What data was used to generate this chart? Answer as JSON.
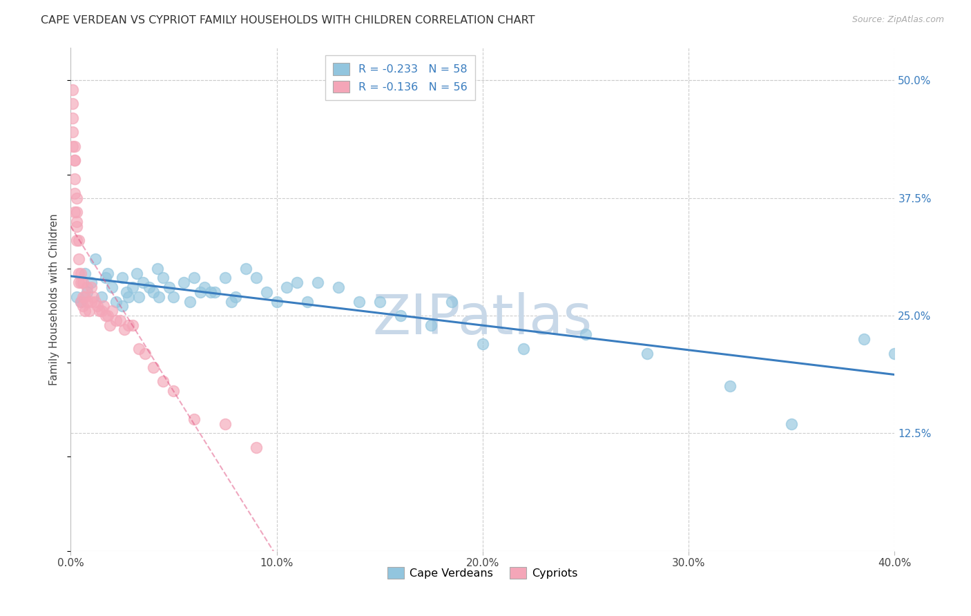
{
  "title": "CAPE VERDEAN VS CYPRIOT FAMILY HOUSEHOLDS WITH CHILDREN CORRELATION CHART",
  "source": "Source: ZipAtlas.com",
  "ylabel": "Family Households with Children",
  "x_tick_labels": [
    "0.0%",
    "10.0%",
    "20.0%",
    "30.0%",
    "40.0%"
  ],
  "x_tick_vals": [
    0.0,
    0.1,
    0.2,
    0.3,
    0.4
  ],
  "y_tick_labels_right": [
    "50.0%",
    "37.5%",
    "25.0%",
    "12.5%"
  ],
  "y_tick_vals": [
    0.5,
    0.375,
    0.25,
    0.125
  ],
  "xlim": [
    0.0,
    0.4
  ],
  "ylim": [
    0.0,
    0.535
  ],
  "legend_blue_label": "R = -0.233   N = 58",
  "legend_pink_label": "R = -0.136   N = 56",
  "blue_color": "#92c5de",
  "pink_color": "#f4a6b8",
  "blue_line_color": "#3a7dbf",
  "pink_line_color": "#e05080",
  "watermark": "ZIPatlas",
  "watermark_color": "#c8d8e8",
  "background_color": "#ffffff",
  "grid_color": "#cccccc",
  "cape_verdean_x": [
    0.003,
    0.005,
    0.007,
    0.008,
    0.01,
    0.012,
    0.015,
    0.017,
    0.018,
    0.02,
    0.022,
    0.025,
    0.025,
    0.027,
    0.028,
    0.03,
    0.032,
    0.033,
    0.035,
    0.038,
    0.04,
    0.042,
    0.043,
    0.045,
    0.048,
    0.05,
    0.055,
    0.058,
    0.06,
    0.063,
    0.065,
    0.068,
    0.07,
    0.075,
    0.078,
    0.08,
    0.085,
    0.09,
    0.095,
    0.1,
    0.105,
    0.11,
    0.115,
    0.12,
    0.13,
    0.14,
    0.15,
    0.16,
    0.175,
    0.185,
    0.2,
    0.22,
    0.25,
    0.28,
    0.32,
    0.35,
    0.385,
    0.4
  ],
  "cape_verdean_y": [
    0.27,
    0.265,
    0.295,
    0.275,
    0.285,
    0.31,
    0.27,
    0.29,
    0.295,
    0.28,
    0.265,
    0.29,
    0.26,
    0.275,
    0.27,
    0.28,
    0.295,
    0.27,
    0.285,
    0.28,
    0.275,
    0.3,
    0.27,
    0.29,
    0.28,
    0.27,
    0.285,
    0.265,
    0.29,
    0.275,
    0.28,
    0.275,
    0.275,
    0.29,
    0.265,
    0.27,
    0.3,
    0.29,
    0.275,
    0.265,
    0.28,
    0.285,
    0.265,
    0.285,
    0.28,
    0.265,
    0.265,
    0.25,
    0.24,
    0.265,
    0.22,
    0.215,
    0.23,
    0.21,
    0.175,
    0.135,
    0.225,
    0.21
  ],
  "cypriot_x": [
    0.001,
    0.001,
    0.001,
    0.001,
    0.001,
    0.002,
    0.002,
    0.002,
    0.002,
    0.002,
    0.002,
    0.003,
    0.003,
    0.003,
    0.003,
    0.003,
    0.004,
    0.004,
    0.004,
    0.004,
    0.005,
    0.005,
    0.005,
    0.006,
    0.006,
    0.006,
    0.007,
    0.007,
    0.008,
    0.008,
    0.009,
    0.01,
    0.01,
    0.011,
    0.012,
    0.013,
    0.014,
    0.015,
    0.016,
    0.017,
    0.018,
    0.019,
    0.02,
    0.022,
    0.024,
    0.026,
    0.028,
    0.03,
    0.033,
    0.036,
    0.04,
    0.045,
    0.05,
    0.06,
    0.075,
    0.09
  ],
  "cypriot_y": [
    0.49,
    0.475,
    0.46,
    0.445,
    0.43,
    0.43,
    0.415,
    0.395,
    0.415,
    0.38,
    0.36,
    0.36,
    0.345,
    0.375,
    0.35,
    0.33,
    0.33,
    0.31,
    0.295,
    0.285,
    0.295,
    0.285,
    0.265,
    0.285,
    0.27,
    0.26,
    0.27,
    0.255,
    0.28,
    0.265,
    0.255,
    0.28,
    0.265,
    0.27,
    0.265,
    0.26,
    0.255,
    0.255,
    0.26,
    0.25,
    0.25,
    0.24,
    0.255,
    0.245,
    0.245,
    0.235,
    0.24,
    0.24,
    0.215,
    0.21,
    0.195,
    0.18,
    0.17,
    0.14,
    0.135,
    0.11
  ]
}
